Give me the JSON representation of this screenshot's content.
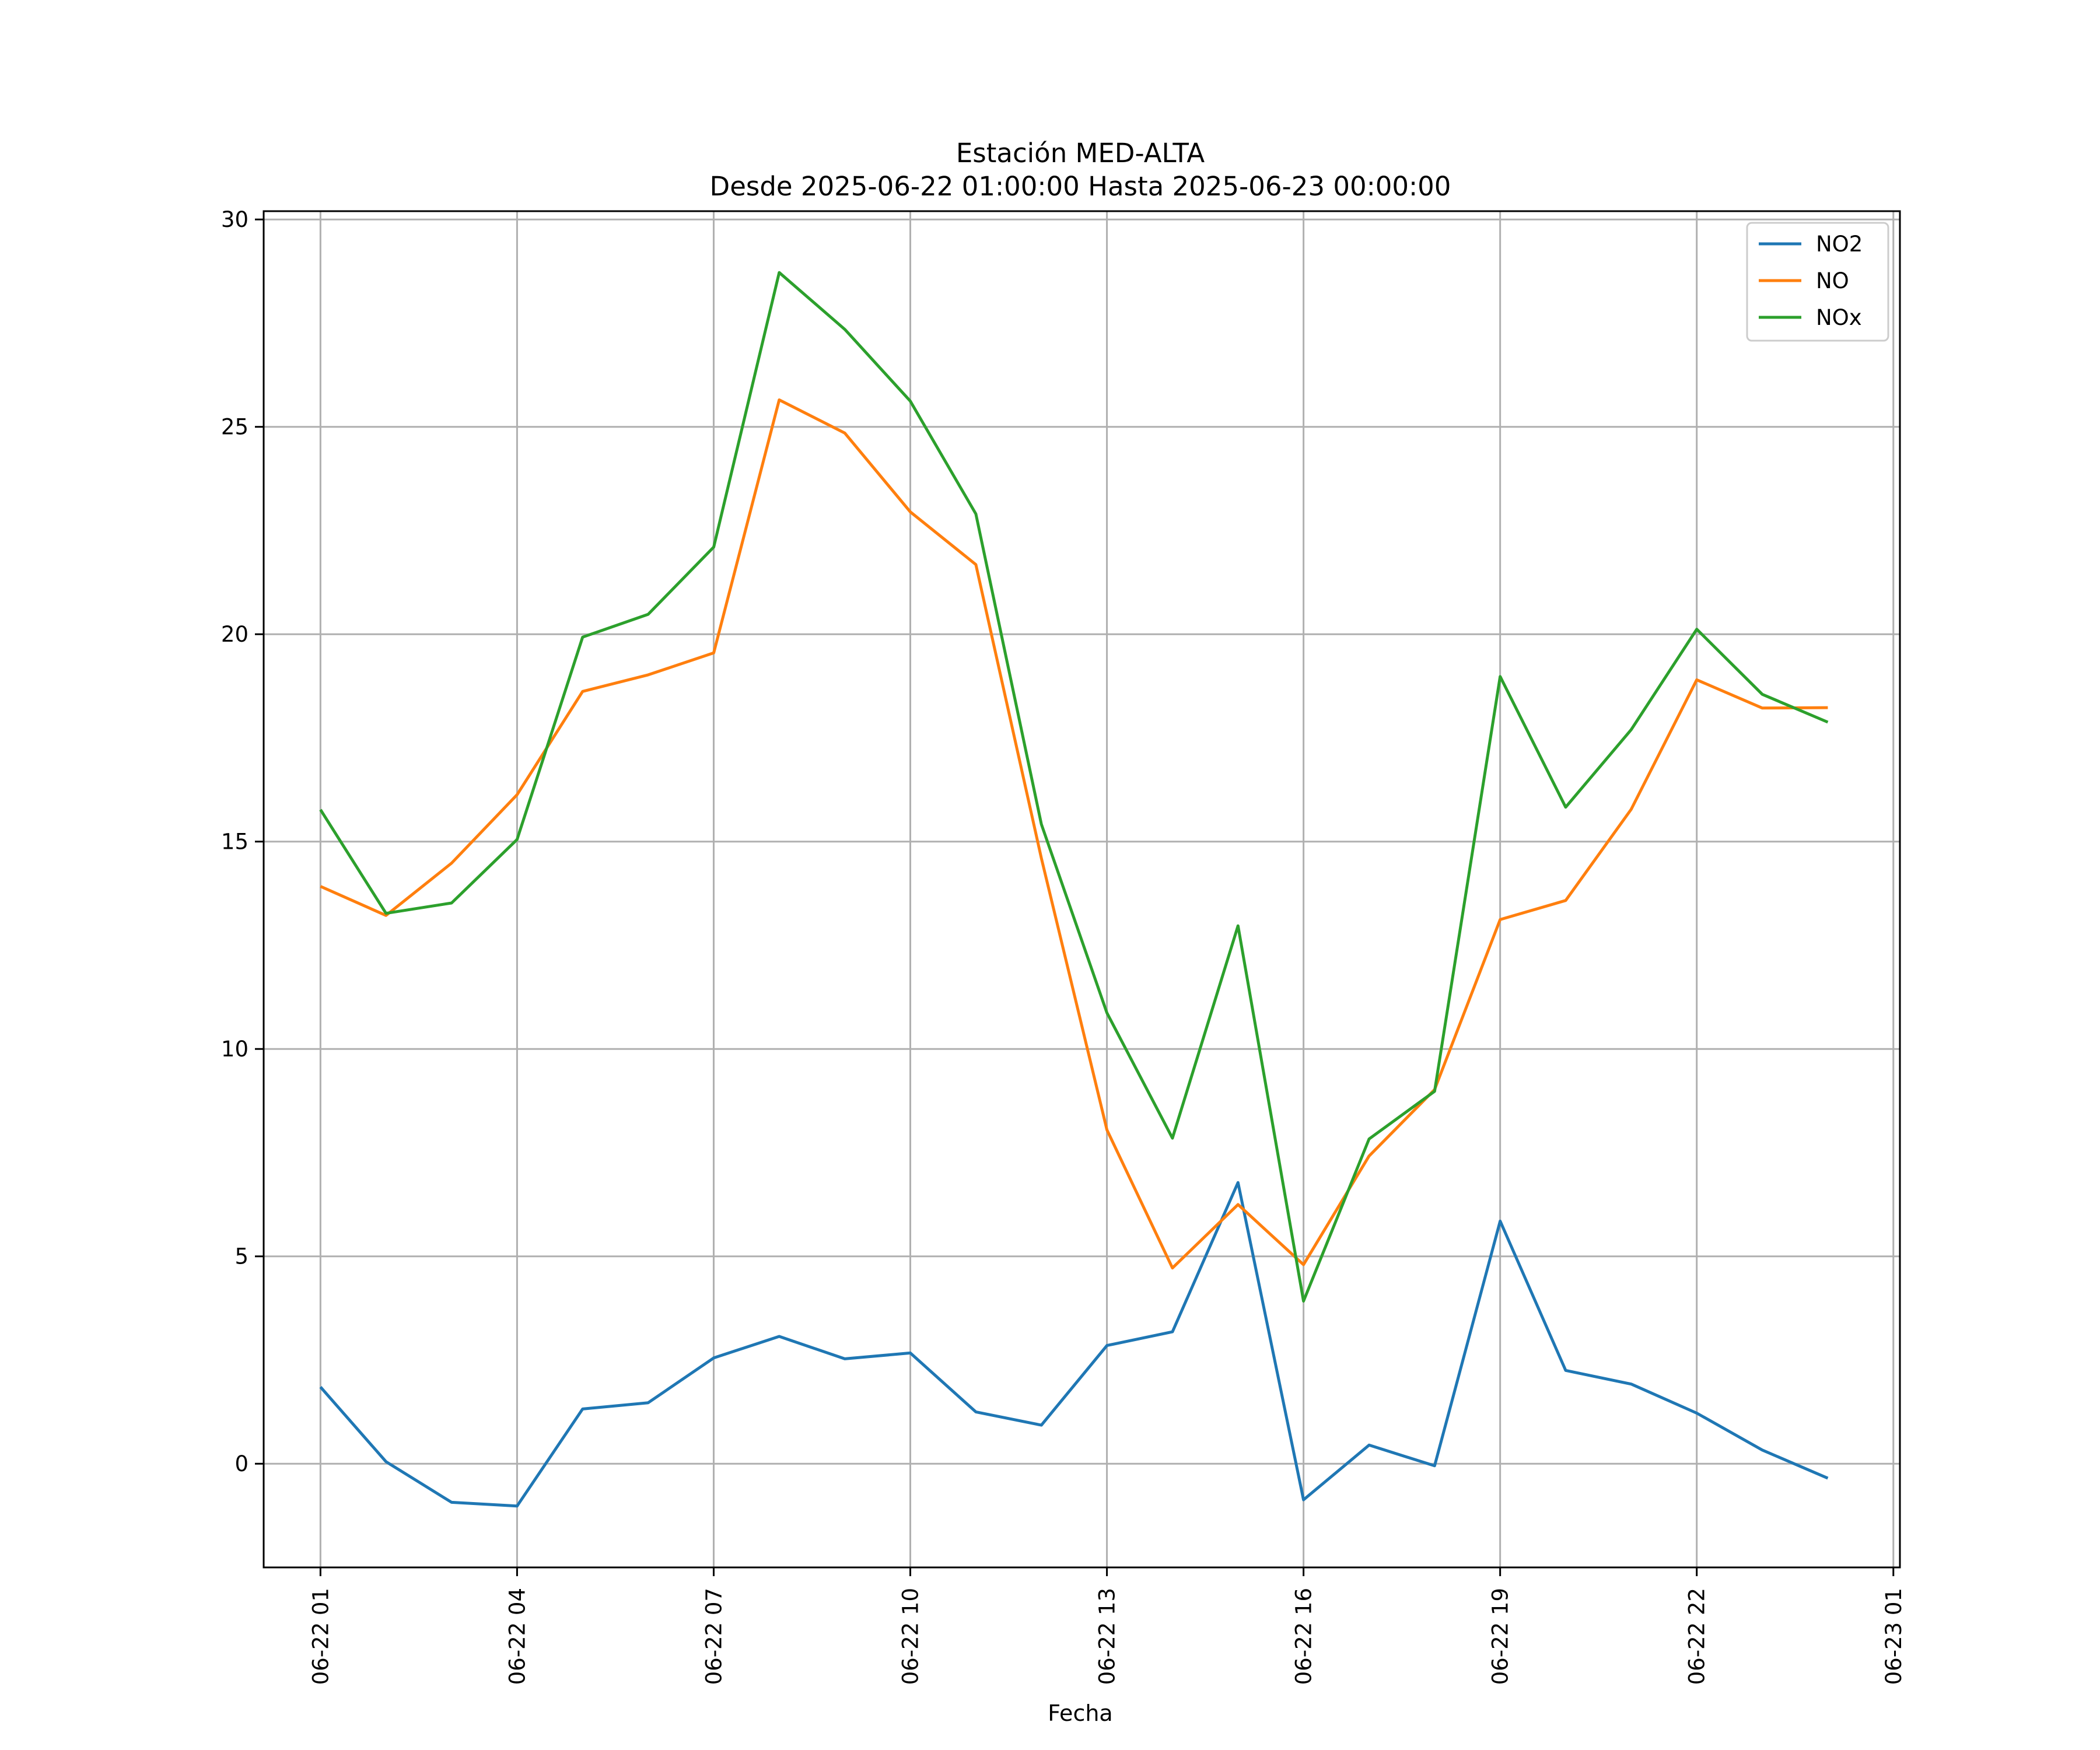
{
  "chart_data": {
    "type": "line",
    "title": "Estación MED-ALTA",
    "subtitle": "Desde 2025-06-22 01:00:00 Hasta 2025-06-23 00:00:00",
    "xlabel": "Fecha",
    "ylabel": "",
    "x": [
      "2025-06-22 01:00",
      "2025-06-22 02:00",
      "2025-06-22 03:00",
      "2025-06-22 04:00",
      "2025-06-22 05:00",
      "2025-06-22 06:00",
      "2025-06-22 07:00",
      "2025-06-22 08:00",
      "2025-06-22 09:00",
      "2025-06-22 10:00",
      "2025-06-22 11:00",
      "2025-06-22 12:00",
      "2025-06-22 13:00",
      "2025-06-22 14:00",
      "2025-06-22 15:00",
      "2025-06-22 16:00",
      "2025-06-22 17:00",
      "2025-06-22 18:00",
      "2025-06-22 19:00",
      "2025-06-22 20:00",
      "2025-06-22 21:00",
      "2025-06-22 22:00",
      "2025-06-22 23:00",
      "2025-06-23 00:00"
    ],
    "series": [
      {
        "name": "NO2",
        "color": "#1f77b4",
        "values": [
          1.85,
          0.05,
          -0.93,
          -1.02,
          1.32,
          1.47,
          2.55,
          3.07,
          2.53,
          2.67,
          1.25,
          0.93,
          2.85,
          3.18,
          6.78,
          -0.87,
          0.45,
          -0.05,
          5.85,
          2.25,
          1.92,
          1.22,
          0.33,
          -0.35
        ]
      },
      {
        "name": "NO",
        "color": "#ff7f0e",
        "values": [
          13.92,
          13.22,
          14.48,
          16.13,
          18.62,
          19.02,
          19.55,
          25.65,
          24.85,
          22.95,
          21.68,
          14.6,
          8.05,
          4.72,
          6.25,
          4.8,
          7.42,
          9.02,
          13.12,
          13.58,
          15.78,
          18.9,
          18.22,
          18.23
        ]
      },
      {
        "name": "NOx",
        "color": "#2ca02c",
        "values": [
          15.77,
          13.27,
          13.52,
          15.05,
          19.93,
          20.48,
          22.1,
          28.72,
          27.35,
          25.62,
          22.9,
          15.42,
          10.87,
          7.85,
          12.97,
          3.92,
          7.83,
          8.98,
          18.98,
          15.83,
          17.7,
          20.12,
          18.55,
          17.88
        ]
      }
    ],
    "x_ticks": [
      "06-22 01",
      "06-22 04",
      "06-22 07",
      "06-22 10",
      "06-22 13",
      "06-22 16",
      "06-22 19",
      "06-22 22",
      "06-23 01"
    ],
    "y_ticks": [
      "0",
      "5",
      "10",
      "15",
      "20",
      "25",
      "30"
    ],
    "ylim": [
      -2.5,
      30.2
    ],
    "xlim": [
      "2025-06-22 00:08",
      "2025-06-23 01:06"
    ],
    "grid": true,
    "legend_position": "top-right"
  }
}
